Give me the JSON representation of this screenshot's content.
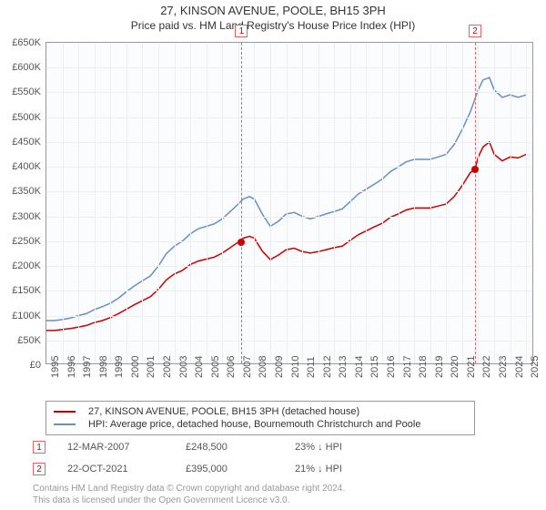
{
  "header": {
    "line1": "27, KINSON AVENUE, POOLE, BH15 3PH",
    "line2": "Price paid vs. HM Land Registry's House Price Index (HPI)"
  },
  "chart": {
    "type": "line",
    "background_color": "#fafcfe",
    "border_color": "#999999",
    "grid_color": "#eeeeee",
    "x": {
      "min": 1995,
      "max": 2025.5,
      "tick_step": 1,
      "labels": [
        "1995",
        "1996",
        "1997",
        "1998",
        "1999",
        "2000",
        "2001",
        "2002",
        "2003",
        "2004",
        "2005",
        "2006",
        "2007",
        "2008",
        "2009",
        "2010",
        "2011",
        "2012",
        "2013",
        "2014",
        "2015",
        "2016",
        "2017",
        "2018",
        "2019",
        "2020",
        "2021",
        "2022",
        "2023",
        "2024",
        "2025"
      ]
    },
    "y": {
      "min": 0,
      "max": 650000,
      "tick_step": 50000,
      "labels": [
        "£0",
        "£50K",
        "£100K",
        "£150K",
        "£200K",
        "£250K",
        "£300K",
        "£350K",
        "£400K",
        "£450K",
        "£500K",
        "£550K",
        "£600K",
        "£650K"
      ]
    },
    "series": [
      {
        "name": "HPI: Average price, detached house, Bournemouth Christchurch and Poole",
        "color": "#6b8ec4",
        "stroke_width": 1.5,
        "points": [
          [
            1995.0,
            90000
          ],
          [
            1995.5,
            90000
          ],
          [
            1996.0,
            92000
          ],
          [
            1996.5,
            95000
          ],
          [
            1997.0,
            100000
          ],
          [
            1997.5,
            104000
          ],
          [
            1998.0,
            112000
          ],
          [
            1998.5,
            118000
          ],
          [
            1999.0,
            125000
          ],
          [
            1999.5,
            135000
          ],
          [
            2000.0,
            148000
          ],
          [
            2000.5,
            160000
          ],
          [
            2001.0,
            170000
          ],
          [
            2001.5,
            180000
          ],
          [
            2002.0,
            200000
          ],
          [
            2002.5,
            225000
          ],
          [
            2003.0,
            240000
          ],
          [
            2003.5,
            250000
          ],
          [
            2004.0,
            265000
          ],
          [
            2004.5,
            275000
          ],
          [
            2005.0,
            280000
          ],
          [
            2005.5,
            285000
          ],
          [
            2006.0,
            295000
          ],
          [
            2006.5,
            310000
          ],
          [
            2007.0,
            325000
          ],
          [
            2007.3,
            335000
          ],
          [
            2007.7,
            340000
          ],
          [
            2008.0,
            335000
          ],
          [
            2008.5,
            305000
          ],
          [
            2009.0,
            280000
          ],
          [
            2009.5,
            290000
          ],
          [
            2010.0,
            305000
          ],
          [
            2010.5,
            308000
          ],
          [
            2011.0,
            300000
          ],
          [
            2011.5,
            295000
          ],
          [
            2012.0,
            300000
          ],
          [
            2012.5,
            305000
          ],
          [
            2013.0,
            310000
          ],
          [
            2013.5,
            315000
          ],
          [
            2014.0,
            330000
          ],
          [
            2014.5,
            345000
          ],
          [
            2015.0,
            355000
          ],
          [
            2015.5,
            365000
          ],
          [
            2016.0,
            375000
          ],
          [
            2016.5,
            390000
          ],
          [
            2017.0,
            400000
          ],
          [
            2017.5,
            410000
          ],
          [
            2018.0,
            415000
          ],
          [
            2018.5,
            415000
          ],
          [
            2019.0,
            415000
          ],
          [
            2019.5,
            420000
          ],
          [
            2020.0,
            425000
          ],
          [
            2020.5,
            445000
          ],
          [
            2021.0,
            475000
          ],
          [
            2021.5,
            510000
          ],
          [
            2022.0,
            555000
          ],
          [
            2022.3,
            575000
          ],
          [
            2022.7,
            580000
          ],
          [
            2023.0,
            555000
          ],
          [
            2023.5,
            540000
          ],
          [
            2024.0,
            545000
          ],
          [
            2024.5,
            540000
          ],
          [
            2025.0,
            545000
          ]
        ]
      },
      {
        "name": "27, KINSON AVENUE, POOLE, BH15 3PH (detached house)",
        "color": "#cc0000",
        "stroke_width": 1.5,
        "points": [
          [
            1995.0,
            70000
          ],
          [
            1995.5,
            70000
          ],
          [
            1996.0,
            72000
          ],
          [
            1996.5,
            74000
          ],
          [
            1997.0,
            77000
          ],
          [
            1997.5,
            80000
          ],
          [
            1998.0,
            86000
          ],
          [
            1998.5,
            90000
          ],
          [
            1999.0,
            96000
          ],
          [
            1999.5,
            104000
          ],
          [
            2000.0,
            113000
          ],
          [
            2000.5,
            122000
          ],
          [
            2001.0,
            130000
          ],
          [
            2001.5,
            138000
          ],
          [
            2002.0,
            153000
          ],
          [
            2002.5,
            172000
          ],
          [
            2003.0,
            184000
          ],
          [
            2003.5,
            191000
          ],
          [
            2004.0,
            203000
          ],
          [
            2004.5,
            210000
          ],
          [
            2005.0,
            214000
          ],
          [
            2005.5,
            218000
          ],
          [
            2006.0,
            226000
          ],
          [
            2006.5,
            237000
          ],
          [
            2007.0,
            248500
          ],
          [
            2007.3,
            256000
          ],
          [
            2007.7,
            260000
          ],
          [
            2008.0,
            256000
          ],
          [
            2008.5,
            230000
          ],
          [
            2009.0,
            213000
          ],
          [
            2009.5,
            222000
          ],
          [
            2010.0,
            233000
          ],
          [
            2010.5,
            236000
          ],
          [
            2011.0,
            229000
          ],
          [
            2011.5,
            226000
          ],
          [
            2012.0,
            229000
          ],
          [
            2012.5,
            233000
          ],
          [
            2013.0,
            237000
          ],
          [
            2013.5,
            240000
          ],
          [
            2014.0,
            252000
          ],
          [
            2014.5,
            263000
          ],
          [
            2015.0,
            271000
          ],
          [
            2015.5,
            279000
          ],
          [
            2016.0,
            286000
          ],
          [
            2016.5,
            298000
          ],
          [
            2017.0,
            305000
          ],
          [
            2017.5,
            313000
          ],
          [
            2018.0,
            317000
          ],
          [
            2018.5,
            317000
          ],
          [
            2019.0,
            317000
          ],
          [
            2019.5,
            321000
          ],
          [
            2020.0,
            325000
          ],
          [
            2020.5,
            340000
          ],
          [
            2021.0,
            362000
          ],
          [
            2021.5,
            388000
          ],
          [
            2021.8,
            395000
          ],
          [
            2022.0,
            420000
          ],
          [
            2022.3,
            440000
          ],
          [
            2022.7,
            450000
          ],
          [
            2023.0,
            425000
          ],
          [
            2023.5,
            412000
          ],
          [
            2024.0,
            420000
          ],
          [
            2024.5,
            418000
          ],
          [
            2025.0,
            425000
          ]
        ]
      }
    ],
    "markers": [
      {
        "num": "1",
        "year": 2007.2,
        "value": 248500
      },
      {
        "num": "2",
        "year": 2021.8,
        "value": 395000
      }
    ],
    "marker_line_color": "#e06666",
    "marker_dot_color": "#cc0000"
  },
  "legend": {
    "rows": [
      {
        "color": "#cc0000",
        "label": "27, KINSON AVENUE, POOLE, BH15 3PH (detached house)"
      },
      {
        "color": "#6b8ec4",
        "label": "HPI: Average price, detached house, Bournemouth Christchurch and Poole"
      }
    ]
  },
  "sales": [
    {
      "num": "1",
      "date": "12-MAR-2007",
      "price": "£248,500",
      "pct": "23% ↓ HPI"
    },
    {
      "num": "2",
      "date": "22-OCT-2021",
      "price": "£395,000",
      "pct": "21% ↓ HPI"
    }
  ],
  "footer": {
    "line1": "Contains HM Land Registry data © Crown copyright and database right 2024.",
    "line2": "This data is licensed under the Open Government Licence v3.0."
  }
}
